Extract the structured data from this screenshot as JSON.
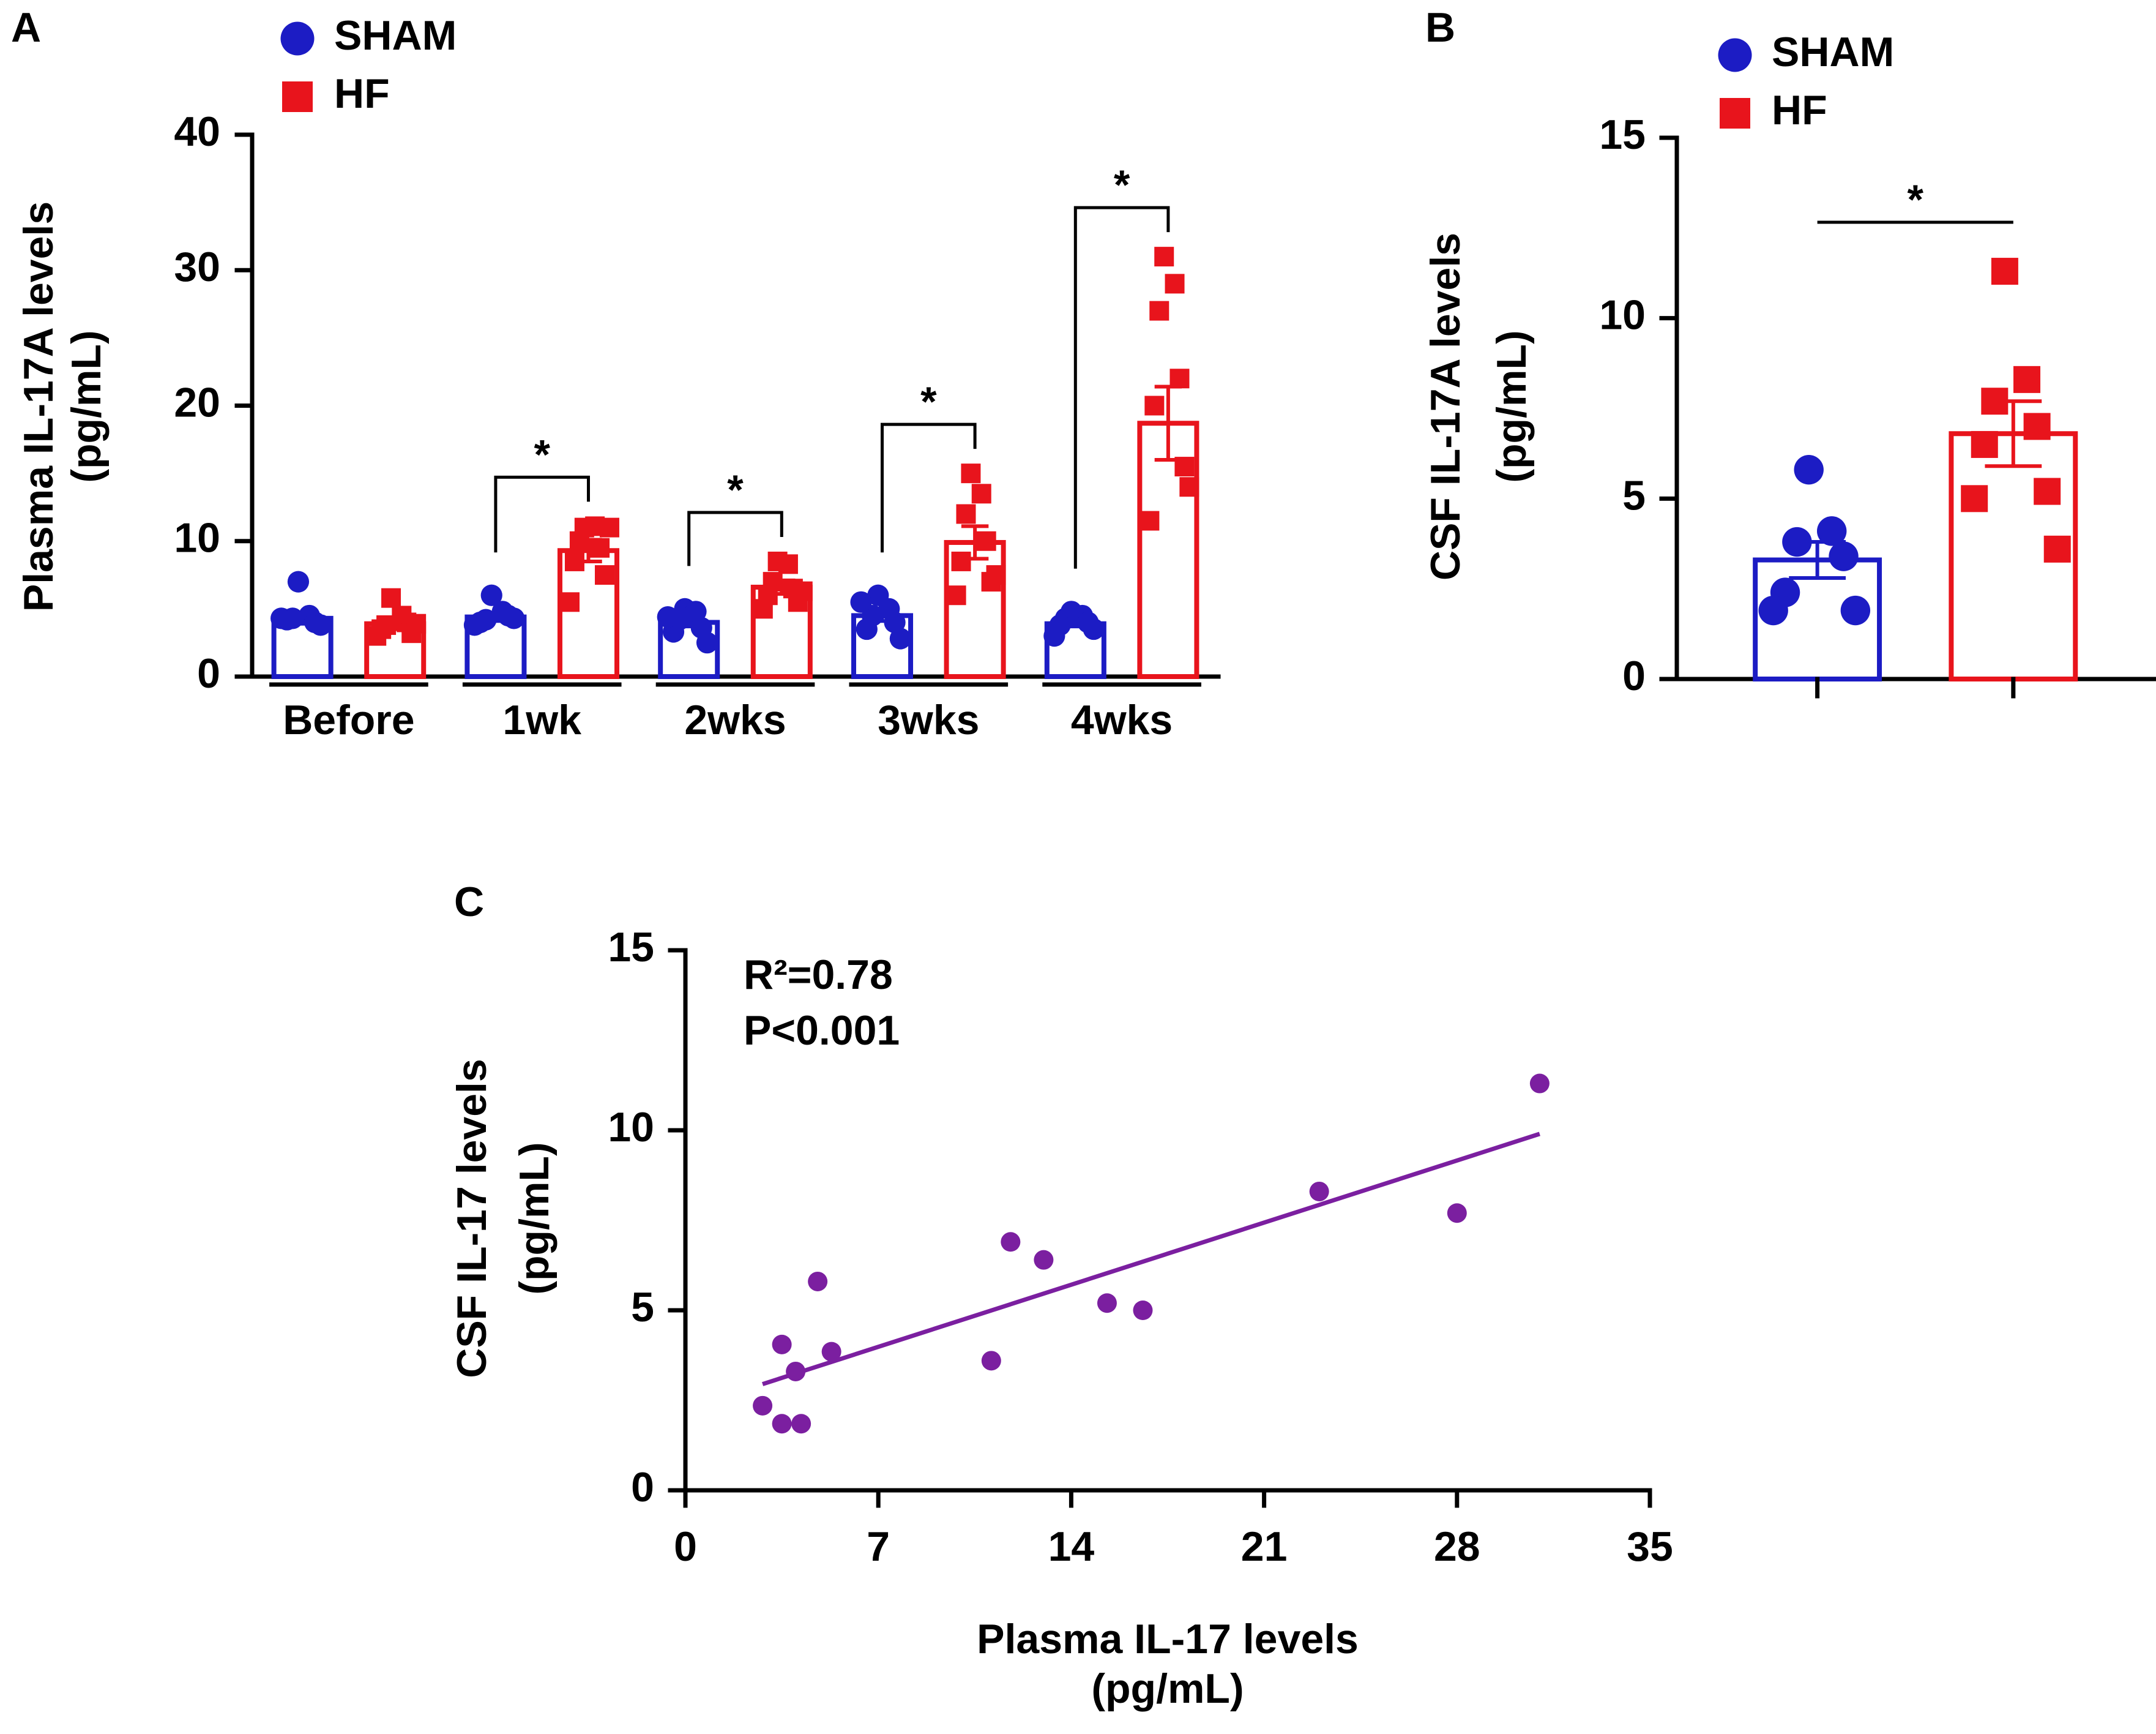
{
  "chart_data": [
    {
      "type": "bar",
      "panel": "A",
      "ylabel": [
        "Plasma IL-17A levels",
        "(pg/mL)"
      ],
      "categories": [
        "Before",
        "1wk",
        "2wks",
        "3wks",
        "4wks"
      ],
      "ylim": [
        0,
        40
      ],
      "yticks": [
        0,
        10,
        20,
        30,
        40
      ],
      "significance": [
        null,
        "*",
        "*",
        "*",
        "*"
      ],
      "series": [
        {
          "name": "SHAM",
          "color": "#1c1cc4",
          "marker": "circle",
          "values": [
            4.3,
            4.4,
            4.0,
            4.5,
            3.9
          ],
          "errors": [
            0.4,
            0.3,
            0.3,
            0.4,
            0.2
          ],
          "points": [
            [
              7.0,
              4.5,
              4.3,
              4.0,
              4.2,
              3.8,
              4.3
            ],
            [
              6.0,
              4.8,
              4.2,
              4.5,
              4.0,
              4.3,
              3.8
            ],
            [
              5.0,
              4.8,
              4.2,
              3.6,
              3.3,
              2.5,
              4.4
            ],
            [
              6.0,
              5.0,
              4.5,
              4.0,
              3.5,
              2.8,
              5.5
            ],
            [
              4.8,
              4.5,
              4.3,
              4.0,
              3.8,
              3.5,
              3.0
            ]
          ]
        },
        {
          "name": "HF",
          "color": "#e8141c",
          "marker": "square",
          "values": [
            3.9,
            9.3,
            6.6,
            9.9,
            18.7
          ],
          "errors": [
            0.4,
            0.8,
            0.5,
            1.2,
            2.7
          ],
          "points": [
            [
              5.8,
              4.5,
              3.8,
              4.0,
              3.5,
              3.2,
              3.0,
              3.9
            ],
            [
              11.0,
              11.1,
              10.0,
              9.5,
              8.5,
              7.5,
              5.5,
              11.0
            ],
            [
              8.5,
              8.3,
              7.0,
              6.5,
              6.0,
              5.5,
              5.0,
              6.3
            ],
            [
              15.0,
              13.5,
              12.0,
              10.0,
              8.5,
              7.0,
              6.0,
              7.5
            ],
            [
              31.0,
              29.0,
              27.0,
              22.0,
              20.0,
              15.5,
              11.5,
              14.0
            ]
          ]
        }
      ]
    },
    {
      "type": "bar",
      "panel": "B",
      "ylabel": [
        "CSF IL-17A levels",
        "(pg/mL)"
      ],
      "categories": [
        null
      ],
      "ylim": [
        0,
        15
      ],
      "yticks": [
        0,
        5,
        10,
        15
      ],
      "significance": [
        "*"
      ],
      "series": [
        {
          "name": "SHAM",
          "color": "#1c1cc4",
          "marker": "circle",
          "values": [
            3.3
          ],
          "errors": [
            0.5
          ],
          "points": [
            [
              5.8,
              4.1,
              3.8,
              3.4,
              2.4,
              1.9,
              1.9
            ]
          ]
        },
        {
          "name": "HF",
          "color": "#e8141c",
          "marker": "square",
          "values": [
            6.8
          ],
          "errors": [
            0.9
          ],
          "points": [
            [
              11.3,
              8.3,
              7.7,
              7.0,
              6.5,
              5.2,
              5.0,
              3.6
            ]
          ]
        }
      ]
    },
    {
      "type": "scatter",
      "panel": "C",
      "ylabel": [
        "CSF IL-17 levels",
        "(pg/mL)"
      ],
      "xlabel": [
        "Plasma IL-17 levels",
        "(pg/mL)"
      ],
      "annotations": [
        "R²=0.78",
        "P<0.001"
      ],
      "color": "#7b1fa0",
      "x": [
        31,
        23,
        28,
        11.8,
        13,
        15.3,
        16.6,
        11.1,
        4.8,
        3.5,
        5.3,
        4.0,
        2.8,
        3.5,
        4.2
      ],
      "y": [
        11.3,
        8.3,
        7.7,
        6.9,
        6.4,
        5.2,
        5.0,
        3.6,
        5.8,
        4.05,
        3.85,
        3.3,
        2.35,
        1.85,
        1.85
      ],
      "fit": {
        "x": [
          2.8,
          31
        ],
        "y": [
          2.95,
          9.9
        ]
      },
      "xlim": [
        0,
        35
      ],
      "xticks": [
        0,
        7,
        14,
        21,
        28,
        35
      ],
      "ylim": [
        0,
        15
      ],
      "yticks": [
        0,
        5,
        10,
        15
      ]
    }
  ]
}
